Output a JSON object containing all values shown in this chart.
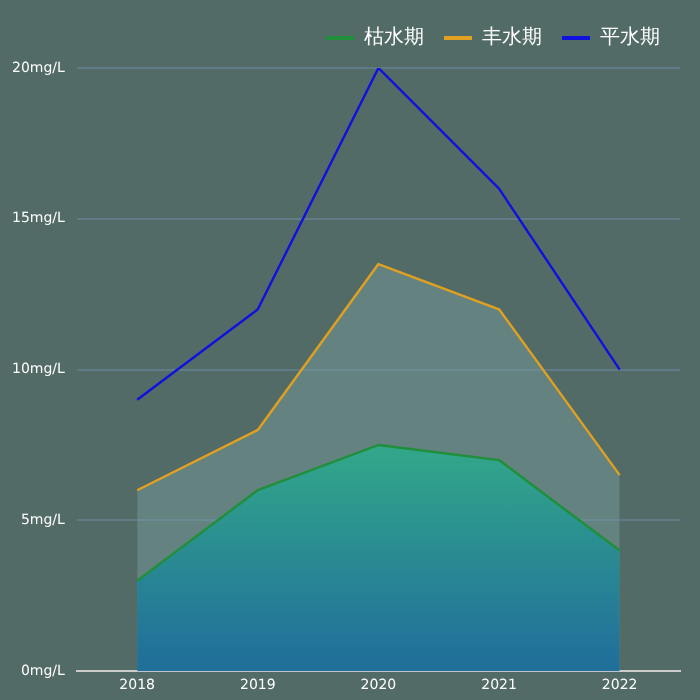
{
  "chart_data": {
    "type": "line",
    "categories": [
      "2018",
      "2019",
      "2020",
      "2021",
      "2022"
    ],
    "series": [
      {
        "name": "枯水期",
        "type": "area",
        "color": "#1f8f3a",
        "values": [
          3,
          6,
          7.5,
          7,
          4
        ]
      },
      {
        "name": "丰水期",
        "type": "area",
        "color": "#e0a020",
        "values": [
          6,
          8,
          13.5,
          12,
          6.5
        ]
      },
      {
        "name": "平水期",
        "type": "line",
        "color": "#1010e0",
        "values": [
          9,
          12,
          20,
          16,
          10
        ]
      }
    ],
    "ylim": [
      0,
      20
    ],
    "yticks": [
      {
        "value": 0,
        "label": "0mg/L"
      },
      {
        "value": 5,
        "label": "5mg/L"
      },
      {
        "value": 10,
        "label": "10mg/L"
      },
      {
        "value": 15,
        "label": "15mg/L"
      },
      {
        "value": 20,
        "label": "20mg/L"
      }
    ],
    "grid": "y",
    "legend": "top right"
  }
}
